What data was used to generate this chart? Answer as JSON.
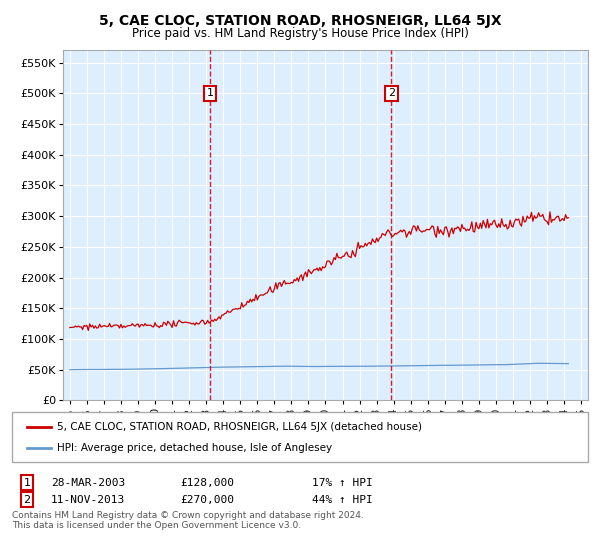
{
  "title": "5, CAE CLOC, STATION ROAD, RHOSNEIGR, LL64 5JX",
  "subtitle": "Price paid vs. HM Land Registry's House Price Index (HPI)",
  "ylabel_ticks": [
    "£0",
    "£50K",
    "£100K",
    "£150K",
    "£200K",
    "£250K",
    "£300K",
    "£350K",
    "£400K",
    "£450K",
    "£500K",
    "£550K"
  ],
  "ytick_values": [
    0,
    50000,
    100000,
    150000,
    200000,
    250000,
    300000,
    350000,
    400000,
    450000,
    500000,
    550000
  ],
  "ylim": [
    0,
    570000
  ],
  "sale1_year": 2003.23,
  "sale1_price": 128000,
  "sale1_date": "28-MAR-2003",
  "sale1_hpi": "17% ↑ HPI",
  "sale2_year": 2013.86,
  "sale2_price": 270000,
  "sale2_date": "11-NOV-2013",
  "sale2_hpi": "44% ↑ HPI",
  "legend_line1": "5, CAE CLOC, STATION ROAD, RHOSNEIGR, LL64 5JX (detached house)",
  "legend_line2": "HPI: Average price, detached house, Isle of Anglesey",
  "footnote1": "Contains HM Land Registry data © Crown copyright and database right 2024.",
  "footnote2": "This data is licensed under the Open Government Licence v3.0.",
  "red_color": "#cc0000",
  "blue_color": "#6699cc",
  "bg_color": "#ddeeff",
  "grid_color": "#ffffff"
}
